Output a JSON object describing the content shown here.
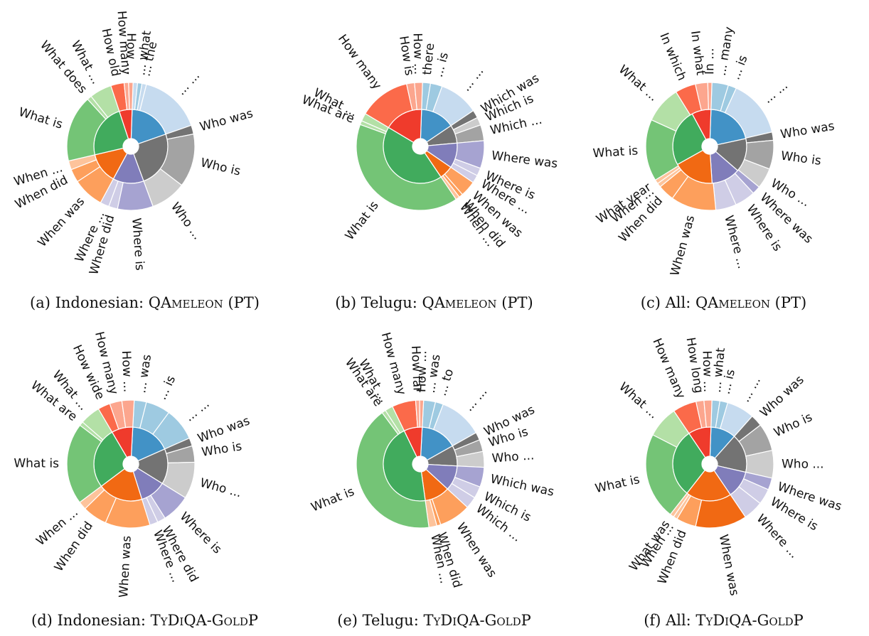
{
  "colors": {
    "blue": [
      "#4292c6",
      "#9ecae1",
      "#c6dbef"
    ],
    "gray": [
      "#737373",
      "#a3a3a3",
      "#cccccc"
    ],
    "purple": [
      "#807dba",
      "#a6a3d1",
      "#cfcde6"
    ],
    "orange": [
      "#f16913",
      "#fd9f5c",
      "#fdc39b"
    ],
    "green": [
      "#41ab5d",
      "#74c476",
      "#b3e0a6"
    ],
    "red": [
      "#ef3b2c",
      "#fb6a4a",
      "#fca68e"
    ]
  },
  "chart_data": [
    {
      "type": "sunburst",
      "caption": {
        "prefix": "(a) Indonesian: ",
        "name": "QAmeleon",
        "suffix": " (PT)"
      },
      "inner": [
        {
          "group": "blue",
          "value": 17
        },
        {
          "group": "gray",
          "value": 22
        },
        {
          "group": "purple",
          "value": 12
        },
        {
          "group": "orange",
          "value": 12
        },
        {
          "group": "green",
          "value": 21
        },
        {
          "group": "red",
          "value": 5
        }
      ],
      "outer": [
        {
          "group": "blue",
          "label": "",
          "value": 1
        },
        {
          "group": "blue",
          "label": "... what",
          "value": 1
        },
        {
          "group": "blue",
          "label": "... the",
          "value": 1
        },
        {
          "group": "blue",
          "label": "... ...",
          "value": 14
        },
        {
          "group": "gray",
          "label": "Who was",
          "value": 2
        },
        {
          "group": "gray",
          "label": "Who is",
          "value": 12
        },
        {
          "group": "gray",
          "label": "Who ...",
          "value": 8
        },
        {
          "group": "purple",
          "label": "Where is",
          "value": 8
        },
        {
          "group": "purple",
          "label": "Where did",
          "value": 2
        },
        {
          "group": "purple",
          "label": "Where ...",
          "value": 2
        },
        {
          "group": "orange",
          "label": "When was",
          "value": 7
        },
        {
          "group": "orange",
          "label": "When did",
          "value": 3
        },
        {
          "group": "orange",
          "label": "When ...",
          "value": 2
        },
        {
          "group": "green",
          "label": "What is",
          "value": 15
        },
        {
          "group": "green",
          "label": "What does",
          "value": 1
        },
        {
          "group": "green",
          "label": "What ...",
          "value": 5
        },
        {
          "group": "red",
          "label": "How old",
          "value": 3
        },
        {
          "group": "red",
          "label": "How many",
          "value": 1
        },
        {
          "group": "red",
          "label": "How ...",
          "value": 1
        }
      ]
    },
    {
      "type": "sunburst",
      "caption": {
        "prefix": "(b) Telugu: ",
        "name": "QAmeleon",
        "suffix": " (PT)"
      },
      "inner": [
        {
          "group": "blue",
          "value": 15
        },
        {
          "group": "gray",
          "value": 8
        },
        {
          "group": "purple",
          "value": 11
        },
        {
          "group": "orange",
          "value": 6
        },
        {
          "group": "green",
          "value": 43
        },
        {
          "group": "red",
          "value": 17
        }
      ],
      "outer": [
        {
          "group": "blue",
          "label": "there",
          "value": 2
        },
        {
          "group": "blue",
          "label": "... is",
          "value": 3
        },
        {
          "group": "blue",
          "label": "... ...",
          "value": 10
        },
        {
          "group": "gray",
          "label": "Which was",
          "value": 2
        },
        {
          "group": "gray",
          "label": "Which is",
          "value": 2
        },
        {
          "group": "gray",
          "label": "Which ...",
          "value": 4
        },
        {
          "group": "purple",
          "label": "Where was",
          "value": 7
        },
        {
          "group": "purple",
          "label": "Where is",
          "value": 2
        },
        {
          "group": "purple",
          "label": "Where ...",
          "value": 2
        },
        {
          "group": "orange",
          "label": "When was",
          "value": 4
        },
        {
          "group": "orange",
          "label": "When did",
          "value": 1
        },
        {
          "group": "orange",
          "label": "When ...",
          "value": 1
        },
        {
          "group": "green",
          "label": "What is",
          "value": 40
        },
        {
          "group": "green",
          "label": "What are",
          "value": 1
        },
        {
          "group": "green",
          "label": "What ...",
          "value": 2
        },
        {
          "group": "red",
          "label": "How many",
          "value": 13
        },
        {
          "group": "red",
          "label": "How is",
          "value": 2
        },
        {
          "group": "red",
          "label": "How ...",
          "value": 2
        }
      ]
    },
    {
      "type": "sunburst",
      "caption": {
        "prefix": "(c) All: ",
        "name": "QAmeleon",
        "suffix": " (PT)"
      },
      "inner": [
        {
          "group": "blue",
          "value": 20
        },
        {
          "group": "gray",
          "value": 14
        },
        {
          "group": "purple",
          "value": 12
        },
        {
          "group": "orange",
          "value": 17
        },
        {
          "group": "green",
          "value": 24
        },
        {
          "group": "red",
          "value": 8
        }
      ],
      "outer": [
        {
          "group": "blue",
          "label": "... many",
          "value": 4
        },
        {
          "group": "blue",
          "label": "... is",
          "value": 2
        },
        {
          "group": "blue",
          "label": "... ...",
          "value": 14
        },
        {
          "group": "gray",
          "label": "Who was",
          "value": 2
        },
        {
          "group": "gray",
          "label": "Who is",
          "value": 7
        },
        {
          "group": "gray",
          "label": "Who ...",
          "value": 5
        },
        {
          "group": "purple",
          "label": "Where was",
          "value": 2
        },
        {
          "group": "purple",
          "label": "Where is",
          "value": 5
        },
        {
          "group": "purple",
          "label": "Where ...",
          "value": 5
        },
        {
          "group": "orange",
          "label": "When was",
          "value": 11
        },
        {
          "group": "orange",
          "label": "When did",
          "value": 4
        },
        {
          "group": "orange",
          "label": "When ...",
          "value": 1
        },
        {
          "group": "orange",
          "label": "What year",
          "value": 1
        },
        {
          "group": "green",
          "label": "What is",
          "value": 15
        },
        {
          "group": "green",
          "label": "What ...",
          "value": 9
        },
        {
          "group": "red",
          "label": "In which",
          "value": 5
        },
        {
          "group": "red",
          "label": "In what",
          "value": 3
        },
        {
          "group": "red",
          "label": "In ...",
          "value": 1
        }
      ]
    },
    {
      "type": "sunburst",
      "caption": {
        "prefix": "(d) Indonesian: ",
        "name": "TyDiQA-GoldP",
        "suffix": ""
      },
      "inner": [
        {
          "group": "blue",
          "value": 17
        },
        {
          "group": "gray",
          "value": 15
        },
        {
          "group": "purple",
          "value": 11
        },
        {
          "group": "orange",
          "value": 19
        },
        {
          "group": "green",
          "value": 26
        },
        {
          "group": "red",
          "value": 9
        }
      ],
      "outer": [
        {
          "group": "blue",
          "label": "... was",
          "value": 3
        },
        {
          "group": "blue",
          "label": "... is",
          "value": 6
        },
        {
          "group": "blue",
          "label": "... ...",
          "value": 8
        },
        {
          "group": "gray",
          "label": "Who was",
          "value": 2
        },
        {
          "group": "gray",
          "label": "Who is",
          "value": 4
        },
        {
          "group": "gray",
          "label": "Who ...",
          "value": 9
        },
        {
          "group": "purple",
          "label": "Where is",
          "value": 7
        },
        {
          "group": "purple",
          "label": "Where did",
          "value": 2
        },
        {
          "group": "purple",
          "label": "Where ...",
          "value": 2
        },
        {
          "group": "orange",
          "label": "When was",
          "value": 11
        },
        {
          "group": "orange",
          "label": "When did",
          "value": 6
        },
        {
          "group": "orange",
          "label": "When ...",
          "value": 2
        },
        {
          "group": "green",
          "label": "What is",
          "value": 20
        },
        {
          "group": "green",
          "label": "What are",
          "value": 1
        },
        {
          "group": "green",
          "label": "What ...",
          "value": 5
        },
        {
          "group": "red",
          "label": "How wide",
          "value": 3
        },
        {
          "group": "red",
          "label": "How many",
          "value": 3
        },
        {
          "group": "red",
          "label": "How ...",
          "value": 3
        }
      ]
    },
    {
      "type": "sunburst",
      "caption": {
        "prefix": "(e) Telugu: ",
        "name": "TyDiQA-GoldP",
        "suffix": ""
      },
      "inner": [
        {
          "group": "blue",
          "value": 16
        },
        {
          "group": "gray",
          "value": 9
        },
        {
          "group": "purple",
          "value": 11
        },
        {
          "group": "orange",
          "value": 11
        },
        {
          "group": "green",
          "value": 45
        },
        {
          "group": "red",
          "value": 8
        }
      ],
      "outer": [
        {
          "group": "blue",
          "label": "... was",
          "value": 3
        },
        {
          "group": "blue",
          "label": "... to",
          "value": 2
        },
        {
          "group": "blue",
          "label": "... ...",
          "value": 11
        },
        {
          "group": "gray",
          "label": "Who was",
          "value": 2
        },
        {
          "group": "gray",
          "label": "Who is",
          "value": 3
        },
        {
          "group": "gray",
          "label": "Who ...",
          "value": 4
        },
        {
          "group": "purple",
          "label": "Which was",
          "value": 5
        },
        {
          "group": "purple",
          "label": "Which is",
          "value": 3
        },
        {
          "group": "purple",
          "label": "Which ...",
          "value": 3
        },
        {
          "group": "orange",
          "label": "When was",
          "value": 8
        },
        {
          "group": "orange",
          "label": "When did",
          "value": 1
        },
        {
          "group": "orange",
          "label": "When ...",
          "value": 2
        },
        {
          "group": "green",
          "label": "What is",
          "value": 42
        },
        {
          "group": "green",
          "label": "What are",
          "value": 1
        },
        {
          "group": "green",
          "label": "What ...",
          "value": 2
        },
        {
          "group": "red",
          "label": "How many",
          "value": 6
        },
        {
          "group": "red",
          "label": "How far",
          "value": 1
        },
        {
          "group": "red",
          "label": "How ...",
          "value": 1
        }
      ]
    },
    {
      "type": "sunburst",
      "caption": {
        "prefix": "(f) All: ",
        "name": "TyDiQA-GoldP",
        "suffix": ""
      },
      "inner": [
        {
          "group": "blue",
          "value": 11
        },
        {
          "group": "gray",
          "value": 17
        },
        {
          "group": "purple",
          "value": 12
        },
        {
          "group": "orange",
          "value": 20
        },
        {
          "group": "green",
          "value": 30
        },
        {
          "group": "red",
          "value": 10
        }
      ],
      "outer": [
        {
          "group": "blue",
          "label": "... what",
          "value": 2
        },
        {
          "group": "blue",
          "label": "... is",
          "value": 2
        },
        {
          "group": "blue",
          "label": "... ...",
          "value": 7
        },
        {
          "group": "gray",
          "label": "Who was",
          "value": 3
        },
        {
          "group": "gray",
          "label": "Who is",
          "value": 7
        },
        {
          "group": "gray",
          "label": "Who ...",
          "value": 7
        },
        {
          "group": "purple",
          "label": "Where was",
          "value": 3
        },
        {
          "group": "purple",
          "label": "Where is",
          "value": 4
        },
        {
          "group": "purple",
          "label": "Where ...",
          "value": 5
        },
        {
          "group": "orange",
          "label": "When was",
          "value": 13
        },
        {
          "group": "orange",
          "label": "When did",
          "value": 5
        },
        {
          "group": "orange",
          "label": "When ...",
          "value": 1
        },
        {
          "group": "orange",
          "label": "What was",
          "value": 1
        },
        {
          "group": "green",
          "label": "What is",
          "value": 22
        },
        {
          "group": "green",
          "label": "What ...",
          "value": 8
        },
        {
          "group": "red",
          "label": "How many",
          "value": 6
        },
        {
          "group": "red",
          "label": "How long",
          "value": 2
        },
        {
          "group": "red",
          "label": "How ...",
          "value": 2
        }
      ]
    }
  ]
}
